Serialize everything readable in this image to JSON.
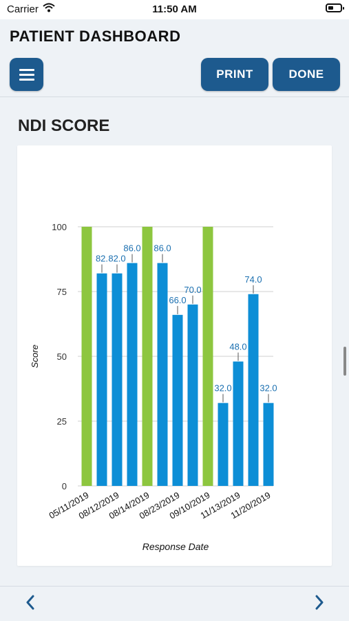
{
  "status_bar": {
    "carrier": "Carrier",
    "time": "11:50 AM"
  },
  "header": {
    "title": "PATIENT DASHBOARD",
    "print_label": "PRINT",
    "done_label": "DONE"
  },
  "section": {
    "title": "NDI SCORE"
  },
  "colors": {
    "blue_bar": "#0d8ed6",
    "green_bar": "#8dc63f",
    "button": "#1d5a8e",
    "label": "#1a6fb0"
  },
  "icons": {
    "menu": "hamburger-icon",
    "prev": "chevron-left-icon",
    "next": "chevron-right-icon",
    "wifi": "wifi-icon",
    "battery": "battery-icon"
  },
  "chart_data": {
    "type": "bar",
    "xlabel": "Response Date",
    "ylabel": "Score",
    "ylim": [
      0,
      100
    ],
    "yticks": [
      0,
      25,
      50,
      75,
      100
    ],
    "grid": true,
    "x_tick_labels": [
      "05/11/2019",
      "08/12/2019",
      "08/14/2019",
      "08/23/2019",
      "09/10/2019",
      "11/13/2019",
      "11/20/2019"
    ],
    "bars": [
      {
        "value": 100,
        "color": "green",
        "label": ""
      },
      {
        "value": 82,
        "color": "blue",
        "label": "82."
      },
      {
        "value": 82,
        "color": "blue",
        "label": "82.0"
      },
      {
        "value": 86,
        "color": "blue",
        "label": "86.0"
      },
      {
        "value": 100,
        "color": "green",
        "label": ""
      },
      {
        "value": 86,
        "color": "blue",
        "label": "86.0"
      },
      {
        "value": 66,
        "color": "blue",
        "label": "66.0"
      },
      {
        "value": 70,
        "color": "blue",
        "label": "70.0"
      },
      {
        "value": 100,
        "color": "green",
        "label": ""
      },
      {
        "value": 32,
        "color": "blue",
        "label": "32.0"
      },
      {
        "value": 48,
        "color": "blue",
        "label": "48.0"
      },
      {
        "value": 74,
        "color": "blue",
        "label": "74.0"
      },
      {
        "value": 32,
        "color": "blue",
        "label": "32.0"
      }
    ]
  }
}
